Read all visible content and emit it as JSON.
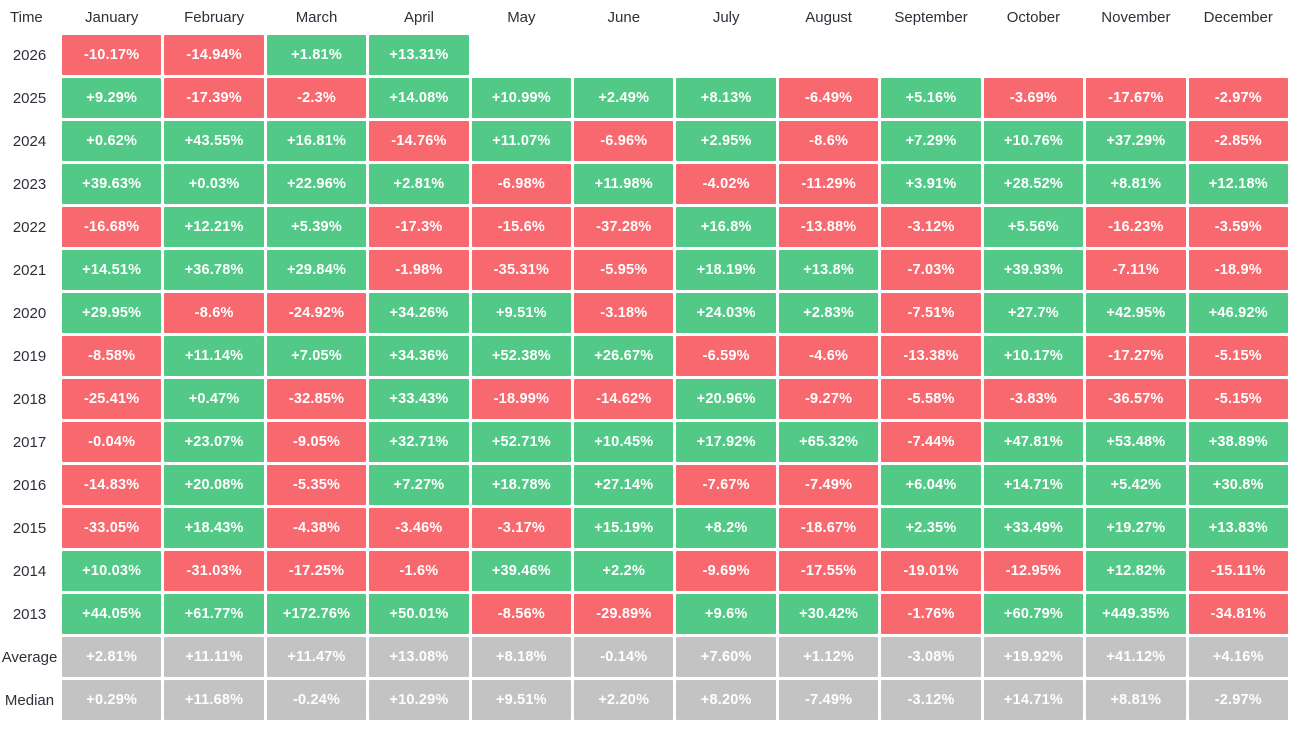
{
  "header": {
    "time_label": "Time"
  },
  "colors": {
    "positive": "#53c987",
    "negative": "#f7696f",
    "aggregate": "#c3c3c3",
    "header_text": "#2b313a",
    "cell_text": "#ffffff"
  },
  "chart_data": {
    "type": "heatmap",
    "title": "",
    "categories": [
      "January",
      "February",
      "March",
      "April",
      "May",
      "June",
      "July",
      "August",
      "September",
      "October",
      "November",
      "December"
    ],
    "rows": [
      {
        "label": "2026",
        "kind": "year",
        "values": [
          "-10.17%",
          "-14.94%",
          "+1.81%",
          "+13.31%",
          "",
          "",
          "",
          "",
          "",
          "",
          "",
          ""
        ]
      },
      {
        "label": "2025",
        "kind": "year",
        "values": [
          "+9.29%",
          "-17.39%",
          "-2.3%",
          "+14.08%",
          "+10.99%",
          "+2.49%",
          "+8.13%",
          "-6.49%",
          "+5.16%",
          "-3.69%",
          "-17.67%",
          "-2.97%"
        ]
      },
      {
        "label": "2024",
        "kind": "year",
        "values": [
          "+0.62%",
          "+43.55%",
          "+16.81%",
          "-14.76%",
          "+11.07%",
          "-6.96%",
          "+2.95%",
          "-8.6%",
          "+7.29%",
          "+10.76%",
          "+37.29%",
          "-2.85%"
        ]
      },
      {
        "label": "2023",
        "kind": "year",
        "values": [
          "+39.63%",
          "+0.03%",
          "+22.96%",
          "+2.81%",
          "-6.98%",
          "+11.98%",
          "-4.02%",
          "-11.29%",
          "+3.91%",
          "+28.52%",
          "+8.81%",
          "+12.18%"
        ]
      },
      {
        "label": "2022",
        "kind": "year",
        "values": [
          "-16.68%",
          "+12.21%",
          "+5.39%",
          "-17.3%",
          "-15.6%",
          "-37.28%",
          "+16.8%",
          "-13.88%",
          "-3.12%",
          "+5.56%",
          "-16.23%",
          "-3.59%"
        ]
      },
      {
        "label": "2021",
        "kind": "year",
        "values": [
          "+14.51%",
          "+36.78%",
          "+29.84%",
          "-1.98%",
          "-35.31%",
          "-5.95%",
          "+18.19%",
          "+13.8%",
          "-7.03%",
          "+39.93%",
          "-7.11%",
          "-18.9%"
        ]
      },
      {
        "label": "2020",
        "kind": "year",
        "values": [
          "+29.95%",
          "-8.6%",
          "-24.92%",
          "+34.26%",
          "+9.51%",
          "-3.18%",
          "+24.03%",
          "+2.83%",
          "-7.51%",
          "+27.7%",
          "+42.95%",
          "+46.92%"
        ]
      },
      {
        "label": "2019",
        "kind": "year",
        "values": [
          "-8.58%",
          "+11.14%",
          "+7.05%",
          "+34.36%",
          "+52.38%",
          "+26.67%",
          "-6.59%",
          "-4.6%",
          "-13.38%",
          "+10.17%",
          "-17.27%",
          "-5.15%"
        ]
      },
      {
        "label": "2018",
        "kind": "year",
        "values": [
          "-25.41%",
          "+0.47%",
          "-32.85%",
          "+33.43%",
          "-18.99%",
          "-14.62%",
          "+20.96%",
          "-9.27%",
          "-5.58%",
          "-3.83%",
          "-36.57%",
          "-5.15%"
        ]
      },
      {
        "label": "2017",
        "kind": "year",
        "values": [
          "-0.04%",
          "+23.07%",
          "-9.05%",
          "+32.71%",
          "+52.71%",
          "+10.45%",
          "+17.92%",
          "+65.32%",
          "-7.44%",
          "+47.81%",
          "+53.48%",
          "+38.89%"
        ]
      },
      {
        "label": "2016",
        "kind": "year",
        "values": [
          "-14.83%",
          "+20.08%",
          "-5.35%",
          "+7.27%",
          "+18.78%",
          "+27.14%",
          "-7.67%",
          "-7.49%",
          "+6.04%",
          "+14.71%",
          "+5.42%",
          "+30.8%"
        ]
      },
      {
        "label": "2015",
        "kind": "year",
        "values": [
          "-33.05%",
          "+18.43%",
          "-4.38%",
          "-3.46%",
          "-3.17%",
          "+15.19%",
          "+8.2%",
          "-18.67%",
          "+2.35%",
          "+33.49%",
          "+19.27%",
          "+13.83%"
        ]
      },
      {
        "label": "2014",
        "kind": "year",
        "values": [
          "+10.03%",
          "-31.03%",
          "-17.25%",
          "-1.6%",
          "+39.46%",
          "+2.2%",
          "-9.69%",
          "-17.55%",
          "-19.01%",
          "-12.95%",
          "+12.82%",
          "-15.11%"
        ]
      },
      {
        "label": "2013",
        "kind": "year",
        "values": [
          "+44.05%",
          "+61.77%",
          "+172.76%",
          "+50.01%",
          "-8.56%",
          "-29.89%",
          "+9.6%",
          "+30.42%",
          "-1.76%",
          "+60.79%",
          "+449.35%",
          "-34.81%"
        ]
      },
      {
        "label": "Average",
        "kind": "aggregate",
        "values": [
          "+2.81%",
          "+11.11%",
          "+11.47%",
          "+13.08%",
          "+8.18%",
          "-0.14%",
          "+7.60%",
          "+1.12%",
          "-3.08%",
          "+19.92%",
          "+41.12%",
          "+4.16%"
        ]
      },
      {
        "label": "Median",
        "kind": "aggregate",
        "values": [
          "+0.29%",
          "+11.68%",
          "-0.24%",
          "+10.29%",
          "+9.51%",
          "+2.20%",
          "+8.20%",
          "-7.49%",
          "-3.12%",
          "+14.71%",
          "+8.81%",
          "-2.97%"
        ]
      }
    ]
  }
}
